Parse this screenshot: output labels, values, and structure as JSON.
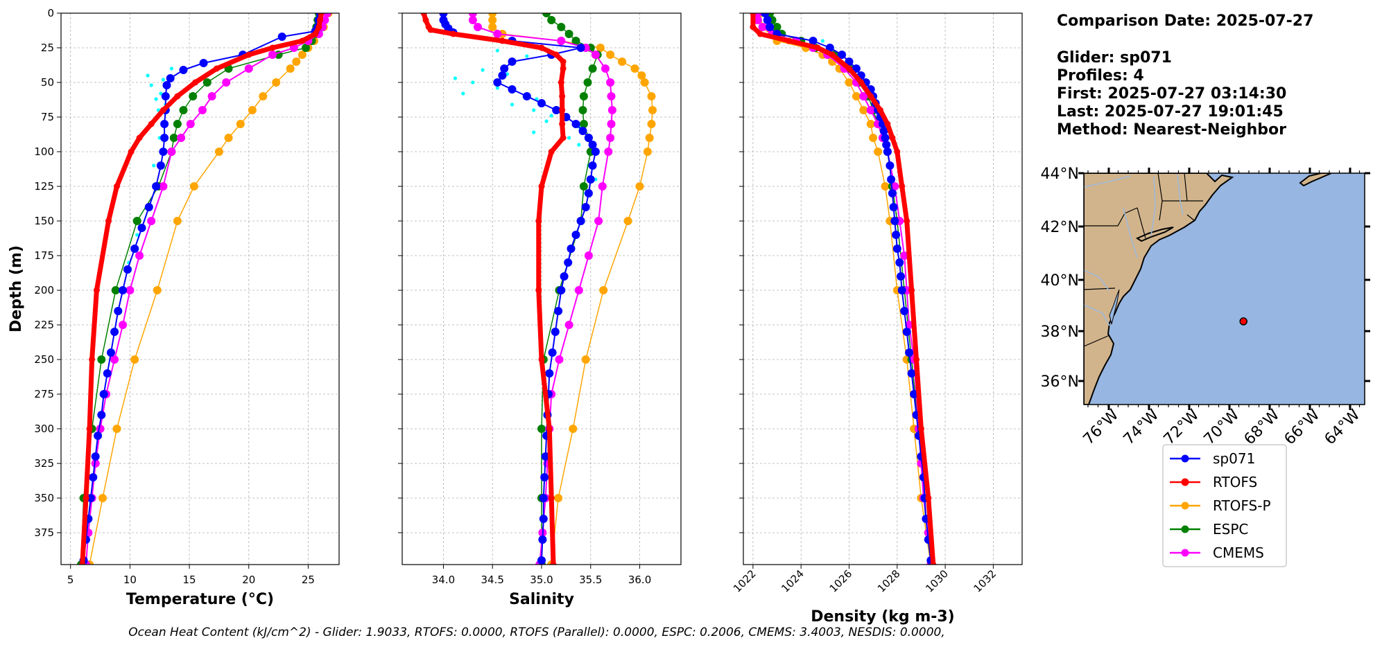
{
  "chart_data": [
    {
      "type": "line",
      "ylabel": "Depth (m)",
      "xlabel": "Temperature (°C)",
      "xlim": [
        4.2,
        27.6
      ],
      "ylim": [
        398,
        0
      ],
      "xticks": [
        5,
        10,
        15,
        20,
        25
      ],
      "yticks": [
        0,
        25,
        50,
        75,
        100,
        125,
        150,
        175,
        200,
        225,
        250,
        275,
        300,
        325,
        350,
        375
      ],
      "grid": true,
      "series": [
        {
          "name": "sp071 (raw)",
          "depth": [
            12,
            22,
            40,
            45,
            48,
            52,
            58,
            62,
            66,
            70,
            80,
            90,
            100,
            110,
            125,
            140,
            160,
            180,
            200
          ],
          "values": [
            26.2,
            24.8,
            13.5,
            11.5,
            12.8,
            11.8,
            12.6,
            12.2,
            13.0,
            12.4,
            13.1,
            12.5,
            12.9,
            12.0,
            12.2,
            11.5,
            10.6,
            9.9,
            9.2
          ]
        },
        {
          "name": "sp071",
          "depth": [
            0,
            5,
            10,
            13,
            17,
            30,
            36,
            41,
            47,
            52,
            60,
            70,
            80,
            90,
            100,
            110,
            125,
            140,
            155,
            170,
            185,
            200,
            215,
            230,
            245,
            260,
            275,
            290,
            305,
            320,
            335,
            350,
            365,
            380,
            395
          ],
          "values": [
            26.0,
            25.9,
            25.8,
            25.6,
            22.8,
            19.5,
            16.2,
            14.5,
            13.4,
            13.1,
            13.0,
            13.0,
            12.9,
            12.9,
            12.8,
            12.6,
            12.2,
            11.6,
            11.0,
            10.4,
            9.8,
            9.4,
            9.0,
            8.7,
            8.4,
            8.1,
            7.8,
            7.6,
            7.3,
            7.1,
            6.9,
            6.7,
            6.5,
            6.3,
            6.1
          ]
        },
        {
          "name": "RTOFS",
          "depth": [
            0,
            5,
            10,
            15,
            20,
            25,
            30,
            40,
            50,
            60,
            70,
            80,
            90,
            100,
            125,
            150,
            200,
            250,
            300,
            350,
            398
          ],
          "values": [
            26.1,
            26.0,
            25.9,
            25.6,
            24.5,
            22.0,
            20.0,
            17.3,
            15.5,
            14.0,
            12.8,
            11.8,
            10.8,
            10.1,
            8.9,
            8.2,
            7.2,
            6.8,
            6.6,
            6.3,
            6.0
          ]
        },
        {
          "name": "RTOFS-P",
          "depth": [
            0,
            10,
            20,
            25,
            30,
            35,
            40,
            50,
            60,
            70,
            80,
            90,
            100,
            125,
            150,
            200,
            250,
            300,
            350,
            398
          ],
          "values": [
            26.7,
            26.3,
            25.5,
            25.0,
            24.5,
            24.0,
            23.5,
            22.3,
            21.2,
            20.3,
            19.3,
            18.3,
            17.5,
            15.4,
            14.0,
            12.3,
            10.4,
            8.9,
            7.7,
            6.6
          ]
        },
        {
          "name": "ESPC",
          "depth": [
            0,
            5,
            10,
            15,
            20,
            25,
            30,
            40,
            50,
            60,
            70,
            80,
            90,
            100,
            125,
            150,
            200,
            250,
            300,
            350,
            398
          ],
          "values": [
            25.9,
            25.8,
            25.7,
            25.6,
            25.3,
            24.8,
            22.5,
            18.3,
            16.5,
            15.3,
            14.5,
            14.0,
            13.7,
            13.5,
            12.4,
            10.6,
            8.8,
            7.6,
            6.8,
            6.1,
            5.9
          ]
        },
        {
          "name": "CMEMS",
          "depth": [
            0,
            5,
            10,
            15,
            20,
            25,
            30,
            40,
            50,
            60,
            70,
            80,
            90,
            100,
            125,
            150,
            175,
            200,
            225,
            250,
            275,
            300,
            325,
            350,
            375,
            398
          ],
          "values": [
            26.6,
            26.4,
            26.2,
            25.9,
            25.0,
            23.8,
            22.0,
            20.0,
            18.1,
            16.9,
            16.1,
            15.1,
            14.3,
            13.5,
            12.8,
            11.8,
            10.8,
            10.0,
            9.4,
            8.7,
            8.0,
            7.5,
            7.1,
            6.8,
            6.5,
            6.3
          ]
        }
      ]
    },
    {
      "type": "line",
      "xlabel": "Salinity",
      "xlim": [
        33.58,
        36.42
      ],
      "ylim": [
        398,
        0
      ],
      "xticks": [
        "34.0",
        "34.5",
        "35.0",
        "35.5",
        "36.0"
      ],
      "grid": true,
      "series": [
        {
          "name": "sp071 (raw)",
          "depth": [
            22,
            27,
            31,
            36,
            41,
            44,
            47,
            50,
            54,
            58,
            62,
            66,
            70,
            74,
            78,
            82,
            86,
            90,
            95,
            100,
            110,
            120,
            130
          ],
          "values": [
            34.75,
            34.55,
            34.85,
            34.7,
            34.4,
            34.65,
            34.12,
            34.3,
            34.55,
            34.2,
            34.95,
            34.7,
            34.92,
            35.1,
            35.05,
            35.38,
            34.92,
            35.28,
            35.38,
            35.52,
            35.48,
            35.55,
            35.45
          ]
        },
        {
          "name": "sp071",
          "depth": [
            0,
            5,
            8,
            11,
            14,
            20,
            25,
            30,
            35,
            40,
            45,
            50,
            55,
            60,
            65,
            70,
            75,
            80,
            85,
            90,
            95,
            100,
            110,
            120,
            130,
            140,
            150,
            160,
            170,
            180,
            190,
            200,
            215,
            230,
            245,
            260,
            275,
            290,
            305,
            320,
            335,
            350,
            365,
            380,
            395
          ],
          "values": [
            34.0,
            34.0,
            34.02,
            34.05,
            34.1,
            34.7,
            35.4,
            35.1,
            34.7,
            34.62,
            34.6,
            34.55,
            34.7,
            34.85,
            35.0,
            35.15,
            35.25,
            35.35,
            35.42,
            35.48,
            35.52,
            35.55,
            35.52,
            35.5,
            35.48,
            35.45,
            35.4,
            35.35,
            35.3,
            35.27,
            35.23,
            35.2,
            35.17,
            35.14,
            35.11,
            35.08,
            35.07,
            35.06,
            35.05,
            35.04,
            35.03,
            35.02,
            35.02,
            35.01,
            35.0
          ]
        },
        {
          "name": "RTOFS",
          "depth": [
            0,
            5,
            10,
            12,
            15,
            20,
            25,
            30,
            35,
            40,
            50,
            60,
            70,
            80,
            90,
            100,
            125,
            150,
            200,
            250,
            300,
            350,
            398
          ],
          "values": [
            33.8,
            33.82,
            33.85,
            33.87,
            34.1,
            34.6,
            35.0,
            35.15,
            35.22,
            35.22,
            35.2,
            35.21,
            35.21,
            35.21,
            35.22,
            35.1,
            35.0,
            34.97,
            34.97,
            35.0,
            35.08,
            35.1,
            35.12
          ]
        },
        {
          "name": "RTOFS-P",
          "depth": [
            0,
            5,
            10,
            15,
            20,
            25,
            30,
            35,
            40,
            45,
            50,
            60,
            70,
            80,
            90,
            100,
            125,
            150,
            200,
            250,
            300,
            350,
            398
          ],
          "values": [
            34.5,
            34.5,
            34.5,
            34.6,
            35.2,
            35.6,
            35.7,
            35.82,
            35.95,
            36.02,
            36.05,
            36.12,
            36.13,
            36.12,
            36.1,
            36.08,
            36.0,
            35.88,
            35.63,
            35.45,
            35.32,
            35.17,
            35.1
          ]
        },
        {
          "name": "ESPC",
          "depth": [
            0,
            5,
            10,
            15,
            20,
            25,
            30,
            40,
            50,
            60,
            70,
            80,
            90,
            100,
            125,
            150,
            200,
            250,
            300,
            350,
            398
          ],
          "values": [
            35.05,
            35.1,
            35.2,
            35.28,
            35.35,
            35.5,
            35.57,
            35.52,
            35.47,
            35.43,
            35.42,
            35.43,
            35.48,
            35.5,
            35.43,
            35.4,
            35.18,
            35.02,
            35.0,
            35.0,
            35.0
          ]
        },
        {
          "name": "CMEMS",
          "depth": [
            0,
            5,
            10,
            15,
            20,
            25,
            30,
            40,
            50,
            60,
            70,
            80,
            90,
            100,
            125,
            150,
            175,
            200,
            225,
            250,
            275,
            300,
            325,
            350,
            375,
            398
          ],
          "values": [
            34.3,
            34.3,
            34.35,
            34.55,
            35.2,
            35.45,
            35.55,
            35.65,
            35.7,
            35.71,
            35.72,
            35.71,
            35.7,
            35.68,
            35.62,
            35.58,
            35.48,
            35.38,
            35.28,
            35.18,
            35.1,
            35.08,
            35.06,
            35.04,
            35.01,
            34.98
          ]
        }
      ]
    },
    {
      "type": "line",
      "xlabel": "Density (kg m-3)",
      "xlim": [
        1021.6,
        1033.2
      ],
      "ylim": [
        398,
        0
      ],
      "xticks": [
        "1022",
        "1024",
        "1026",
        "1028",
        "1030",
        "1032"
      ],
      "grid": true,
      "series": [
        {
          "name": "sp071 (raw)",
          "depth": [
            20,
            25,
            30,
            35,
            40,
            45,
            50,
            55,
            60
          ],
          "values": [
            1024.9,
            1025.3,
            1025.6,
            1026.0,
            1026.1,
            1026.4,
            1026.6,
            1026.7,
            1026.9
          ]
        },
        {
          "name": "sp071",
          "depth": [
            0,
            5,
            10,
            15,
            20,
            25,
            30,
            35,
            40,
            45,
            50,
            55,
            60,
            65,
            70,
            75,
            80,
            85,
            90,
            95,
            100,
            110,
            120,
            130,
            140,
            150,
            160,
            170,
            180,
            190,
            200,
            215,
            230,
            245,
            260,
            275,
            290,
            305,
            320,
            335,
            350,
            365,
            380,
            395
          ],
          "values": [
            1022.5,
            1022.6,
            1022.7,
            1023.0,
            1024.5,
            1025.2,
            1025.7,
            1026.0,
            1026.3,
            1026.5,
            1026.7,
            1026.9,
            1027.0,
            1027.1,
            1027.2,
            1027.3,
            1027.4,
            1027.45,
            1027.5,
            1027.55,
            1027.6,
            1027.7,
            1027.75,
            1027.8,
            1027.85,
            1027.9,
            1027.95,
            1028.0,
            1028.1,
            1028.15,
            1028.2,
            1028.3,
            1028.4,
            1028.5,
            1028.6,
            1028.7,
            1028.8,
            1028.9,
            1029.0,
            1029.1,
            1029.15,
            1029.2,
            1029.3,
            1029.4
          ]
        },
        {
          "name": "RTOFS",
          "depth": [
            0,
            10,
            15,
            20,
            25,
            30,
            40,
            50,
            60,
            70,
            80,
            90,
            100,
            125,
            150,
            200,
            250,
            300,
            350,
            398
          ],
          "values": [
            1022.0,
            1022.0,
            1022.3,
            1023.5,
            1024.7,
            1025.3,
            1026.0,
            1026.5,
            1026.9,
            1027.3,
            1027.6,
            1027.8,
            1028.0,
            1028.2,
            1028.4,
            1028.6,
            1028.8,
            1029.0,
            1029.3,
            1029.5
          ]
        },
        {
          "name": "RTOFS-P",
          "depth": [
            0,
            10,
            20,
            25,
            30,
            35,
            40,
            50,
            60,
            70,
            80,
            90,
            100,
            125,
            150,
            200,
            250,
            300,
            350,
            398
          ],
          "values": [
            1022.3,
            1022.4,
            1023.0,
            1024.2,
            1024.9,
            1025.3,
            1025.6,
            1026.0,
            1026.3,
            1026.6,
            1026.9,
            1027.0,
            1027.2,
            1027.5,
            1027.7,
            1028.0,
            1028.4,
            1028.7,
            1029.0,
            1029.4
          ]
        },
        {
          "name": "ESPC",
          "depth": [
            0,
            5,
            10,
            15,
            20,
            25,
            30,
            40,
            50,
            60,
            70,
            80,
            90,
            100,
            125,
            150,
            200,
            250,
            300,
            350,
            398
          ],
          "values": [
            1022.7,
            1022.8,
            1023.0,
            1023.2,
            1024.0,
            1024.6,
            1025.4,
            1026.0,
            1026.4,
            1026.8,
            1027.0,
            1027.2,
            1027.4,
            1027.6,
            1027.8,
            1028.0,
            1028.3,
            1028.6,
            1028.9,
            1029.1,
            1029.4
          ]
        },
        {
          "name": "CMEMS",
          "depth": [
            0,
            5,
            10,
            15,
            20,
            25,
            30,
            40,
            50,
            60,
            70,
            80,
            90,
            100,
            125,
            150,
            175,
            200,
            225,
            250,
            275,
            300,
            325,
            350,
            375,
            398
          ],
          "values": [
            1022.2,
            1022.2,
            1022.4,
            1022.8,
            1023.8,
            1024.5,
            1025.1,
            1025.8,
            1026.3,
            1026.6,
            1026.9,
            1027.2,
            1027.4,
            1027.6,
            1027.9,
            1028.1,
            1028.3,
            1028.4,
            1028.5,
            1028.7,
            1028.8,
            1028.9,
            1029.0,
            1029.1,
            1029.3,
            1029.4
          ]
        }
      ]
    }
  ],
  "info": {
    "line1": "Comparison Date: 2025-07-27",
    "line2": "Glider: sp071",
    "line3": "Profiles: 4",
    "line4": "First: 2025-07-27 03:14:30",
    "line5": "Last: 2025-07-27 19:01:45",
    "line6": "Method: Nearest-Neighbor"
  },
  "map": {
    "lat_labels": [
      "44°N",
      "42°N",
      "40°N",
      "38°N",
      "36°N"
    ],
    "lon_labels": [
      "76°W",
      "74°W",
      "72°W",
      "70°W",
      "68°W",
      "66°W",
      "64°W"
    ],
    "ocean_color": "#97b6e1",
    "land_color": "#d2b48c",
    "glider_position": {
      "lat": 38.3,
      "lon": -69.2
    }
  },
  "legend": [
    "sp071",
    "RTOFS",
    "RTOFS-P",
    "ESPC",
    "CMEMS"
  ],
  "colors": {
    "sp071": "#0000ff",
    "sp071_raw": "#00ffff",
    "RTOFS": "#ff0000",
    "RTOFS-P": "#ffa500",
    "ESPC": "#008000",
    "CMEMS": "#ff00ff",
    "grid": "#b0b0b0"
  },
  "footer": "Ocean Heat Content (kJ/cm^2) - Glider: 1.9033,  RTOFS: 0.0000,  RTOFS (Parallel): 0.0000,  ESPC: 0.2006,  CMEMS: 3.4003,  NESDIS: 0.0000,"
}
